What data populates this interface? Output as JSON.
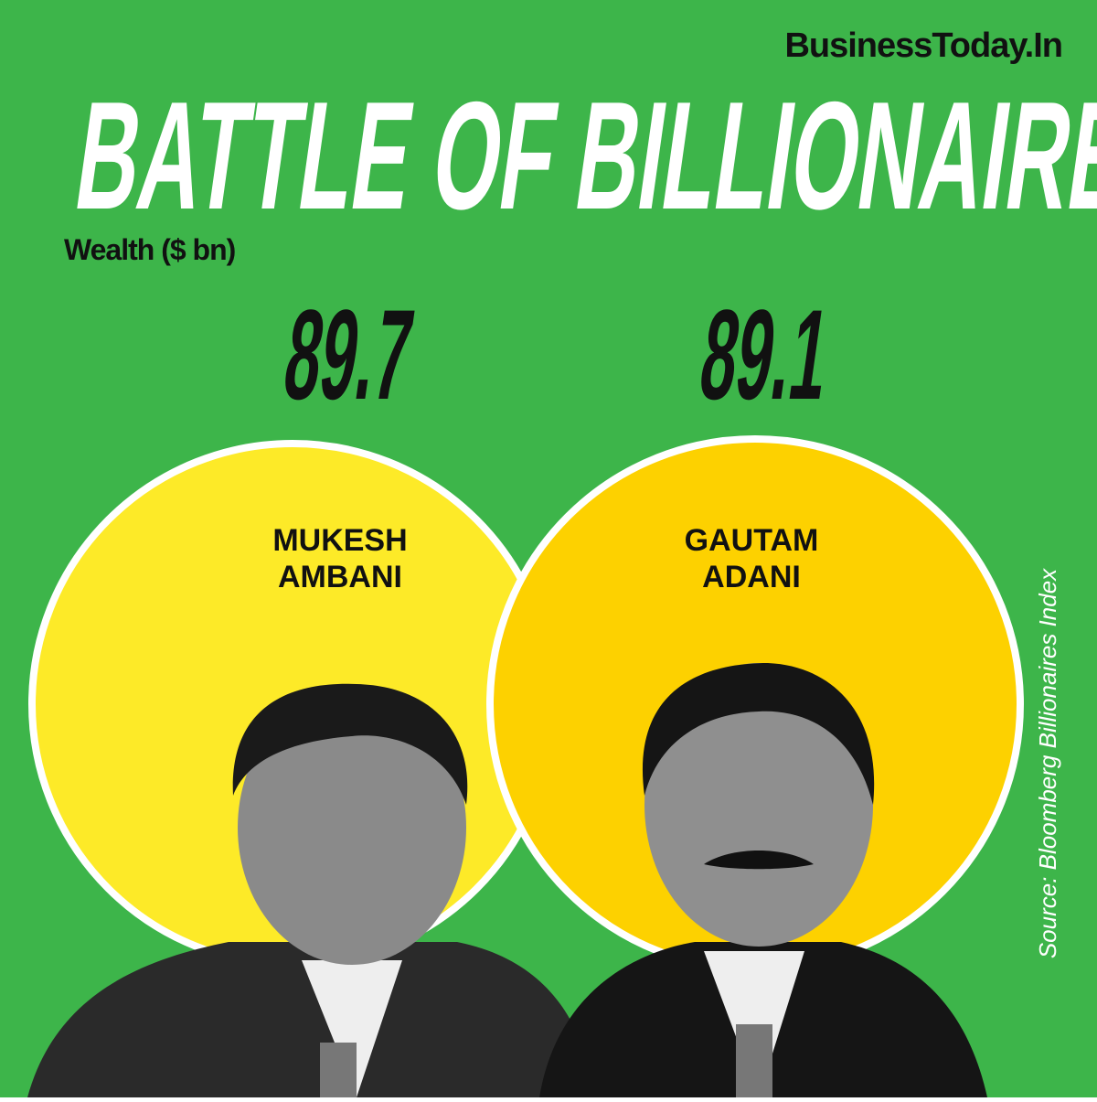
{
  "header": {
    "brand": "BusinessToday.In",
    "title": "BATTLE OF BILLIONAIRES",
    "subtitle": "Wealth ($ bn)"
  },
  "people": [
    {
      "name_lines": [
        "MUKESH",
        "AMBANI"
      ],
      "wealth": "89.7"
    },
    {
      "name_lines": [
        "GAUTAM",
        "ADANI"
      ],
      "wealth": "89.1"
    }
  ],
  "source": "Source: Bloomberg Billionaires Index"
}
